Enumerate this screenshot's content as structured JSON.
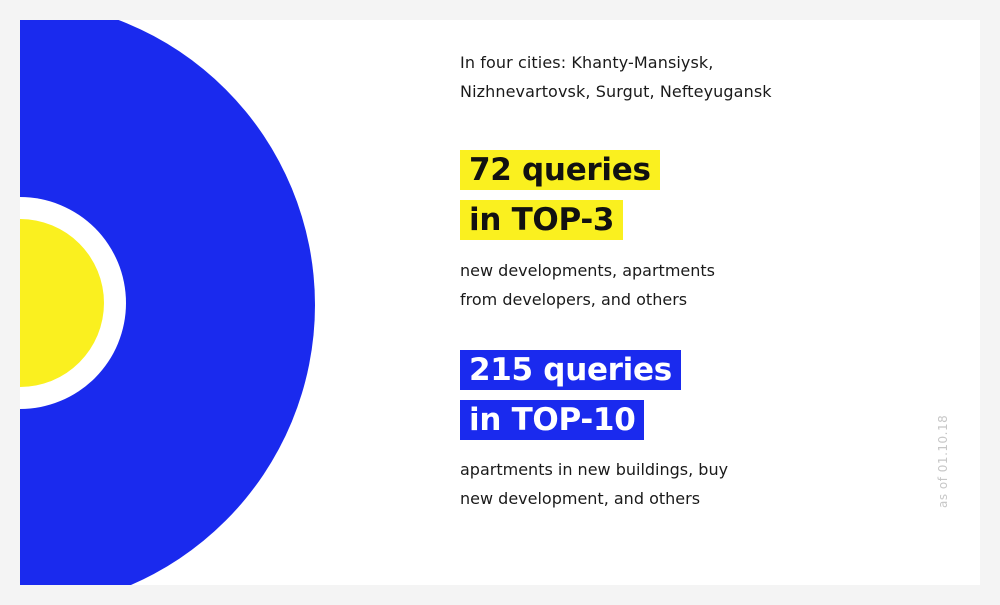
{
  "intro": {
    "line1": "In four cities: Khanty-Mansiysk,",
    "line2": "Nizhnevartovsk, Surgut, Nefteyugansk"
  },
  "stat_top3": {
    "line1": "72 queries",
    "line2": "in TOP-3",
    "desc_line1": "new developments, apartments",
    "desc_line2": "from developers, and others"
  },
  "stat_top10": {
    "line1": "215 queries",
    "line2": "in TOP-10",
    "desc_line1": "apartments in new buildings, buy",
    "desc_line2": "new development, and others"
  },
  "date_note": "as of 01.10.18",
  "colors": {
    "blue": "#1a2aee",
    "yellow": "#faf01f",
    "background": "#f4f4f4",
    "card": "#ffffff"
  }
}
